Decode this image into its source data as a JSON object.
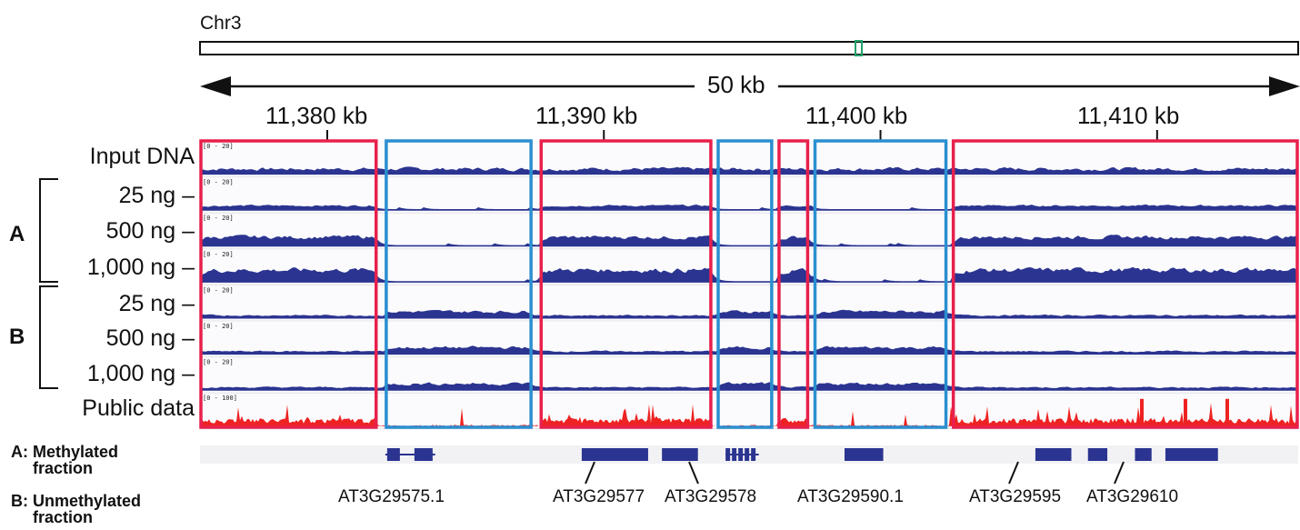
{
  "chromosome": "Chr3",
  "region_ratio": 0.625,
  "scale_label": "50 kb",
  "ticks": [
    {
      "label": "11,380 kb",
      "kb": 11380
    },
    {
      "label": "11,390 kb",
      "kb": 11390
    },
    {
      "label": "11,400 kb",
      "kb": 11400
    },
    {
      "label": "11,410 kb",
      "kb": 11410
    }
  ],
  "view_start_kb": 11375.4,
  "view_end_kb": 11415.1,
  "tracks": [
    {
      "label": "Input DNA",
      "range": "[0 - 20]",
      "group": ""
    },
    {
      "label": "25 ng –",
      "range": "[0 - 20]",
      "group": "A"
    },
    {
      "label": "500 ng –",
      "range": "[0 - 20]",
      "group": "A"
    },
    {
      "label": "1,000 ng –",
      "range": "[0 - 20]",
      "group": "A"
    },
    {
      "label": "25 ng –",
      "range": "[0 - 20]",
      "group": "B"
    },
    {
      "label": "500 ng –",
      "range": "[0 - 20]",
      "group": "B"
    },
    {
      "label": "1,000 ng –",
      "range": "[0 - 20]",
      "group": "B"
    },
    {
      "label": "Public data",
      "range": "[0 - 100]",
      "group": ""
    }
  ],
  "groups": {
    "a": "A",
    "b": "B"
  },
  "legend": {
    "a": "A: Methylated",
    "a2": "fraction",
    "b": "B: Unmethylated",
    "b2": "fraction"
  },
  "highlight_boxes": [
    {
      "type": "methylated",
      "start_kb": 11375.4,
      "end_kb": 11381.8
    },
    {
      "type": "unmethylated",
      "start_kb": 11382.1,
      "end_kb": 11387.4
    },
    {
      "type": "methylated",
      "start_kb": 11387.7,
      "end_kb": 11393.9
    },
    {
      "type": "unmethylated",
      "start_kb": 11394.1,
      "end_kb": 11396.1
    },
    {
      "type": "methylated",
      "start_kb": 11396.3,
      "end_kb": 11397.4
    },
    {
      "type": "unmethylated",
      "start_kb": 11397.6,
      "end_kb": 11402.4
    },
    {
      "type": "methylated",
      "start_kb": 11402.6,
      "end_kb": 11415.1
    }
  ],
  "genes": [
    {
      "name": "AT3G29575.1",
      "start_kb": 11382.1,
      "end_kb": 11383.9
    },
    {
      "name": "AT3G29577",
      "start_kb": 11389.2,
      "end_kb": 11391.6
    },
    {
      "name": "AT3G29578",
      "start_kb": 11392.1,
      "end_kb": 11393.4
    },
    {
      "name": "",
      "start_kb": 11394.4,
      "end_kb": 11395.6
    },
    {
      "name": "AT3G29590.1",
      "start_kb": 11398.7,
      "end_kb": 11400.1
    },
    {
      "name": "AT3G29595",
      "start_kb": 11405.6,
      "end_kb": 11406.9
    },
    {
      "name": "",
      "start_kb": 11407.5,
      "end_kb": 11408.2
    },
    {
      "name": "AT3G29610",
      "start_kb": 11409.2,
      "end_kb": 11409.8
    },
    {
      "name": "",
      "start_kb": 11410.3,
      "end_kb": 11412.2
    }
  ],
  "colors": {
    "methylated_box": "#e8204c",
    "unmethylated_box": "#2b8fd0",
    "coverage": "#2b3490",
    "public_data": "#ee2222",
    "gene": "#2b3490",
    "locator": "#22a16a"
  }
}
